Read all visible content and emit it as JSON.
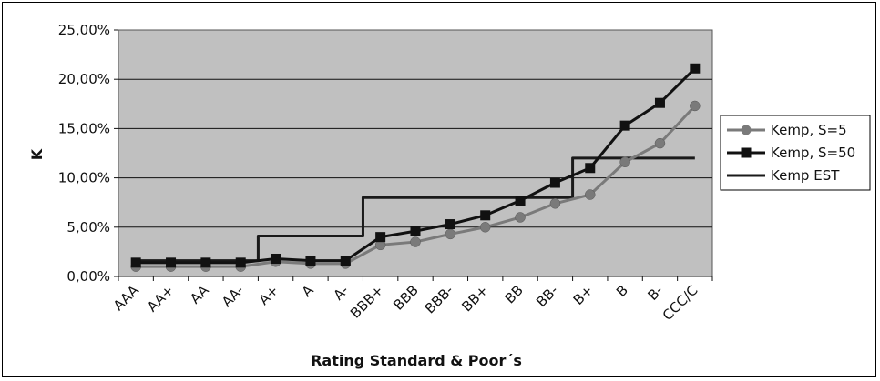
{
  "chart_data": {
    "type": "line",
    "xlabel": "Rating Standard & Poor´s",
    "ylabel": "K",
    "ylim": [
      0,
      25
    ],
    "y_ticks": [
      0,
      5,
      10,
      15,
      20,
      25
    ],
    "y_tick_labels": [
      "0,00%",
      "5,00%",
      "10,00%",
      "15,00%",
      "20,00%",
      "25,00%"
    ],
    "categories": [
      "AAA",
      "AA+",
      "AA",
      "AA-",
      "A+",
      "A",
      "A-",
      "BBB+",
      "BBB",
      "BBB-",
      "BB+",
      "BB",
      "BB-",
      "B+",
      "B",
      "B-",
      "CCC/C"
    ],
    "grid": "horizontal",
    "legend_position": "right",
    "plot_background": "#c0c0c0",
    "series": [
      {
        "name": "Kemp, S=5",
        "marker": "circle",
        "color": "#7a7a7a",
        "values": [
          1.0,
          1.0,
          1.0,
          1.0,
          1.5,
          1.3,
          1.3,
          3.2,
          3.5,
          4.3,
          5.0,
          6.0,
          7.4,
          8.3,
          11.6,
          13.5,
          17.3
        ]
      },
      {
        "name": "Kemp, S=50",
        "marker": "square",
        "color": "#111111",
        "values": [
          1.4,
          1.4,
          1.4,
          1.4,
          1.8,
          1.6,
          1.6,
          4.0,
          4.6,
          5.3,
          6.2,
          7.7,
          9.5,
          11.0,
          15.3,
          17.6,
          21.1
        ]
      },
      {
        "name": "Kemp EST",
        "marker": "none",
        "color": "#1a1a1a",
        "step": true,
        "values": [
          1.6,
          1.6,
          1.6,
          1.6,
          4.1,
          4.1,
          4.1,
          8.0,
          8.0,
          8.0,
          8.0,
          8.0,
          8.0,
          12.0,
          12.0,
          12.0,
          12.0
        ]
      }
    ]
  }
}
